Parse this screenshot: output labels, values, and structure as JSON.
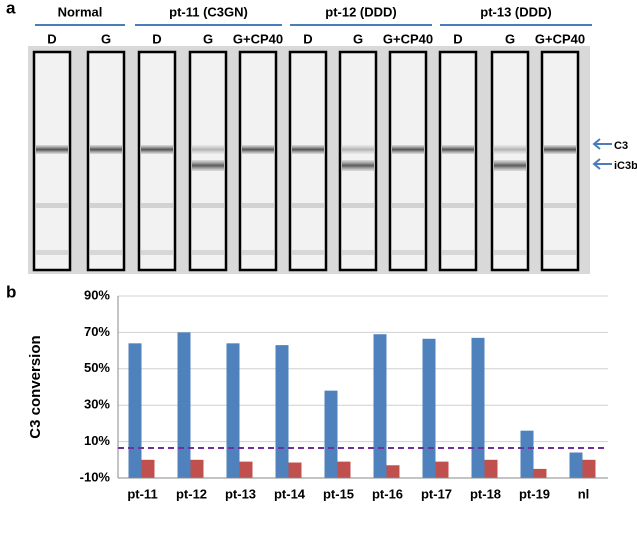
{
  "panel_labels": [
    "a",
    "b"
  ],
  "panel_a": {
    "groups": [
      {
        "label": "Normal"
      },
      {
        "label": "pt-11 (C3GN)"
      },
      {
        "label": "pt-12 (DDD)"
      },
      {
        "label": "pt-13 (DDD)"
      }
    ],
    "lanes": [
      "D",
      "G",
      "D",
      "G",
      "G+CP40",
      "D",
      "G",
      "G+CP40",
      "D",
      "G",
      "G+CP40"
    ],
    "markers": [
      "C3",
      "iC3b"
    ]
  },
  "chart_data": {
    "type": "bar",
    "y_label": "C3 conversion",
    "categories": [
      "pt-11",
      "pt-12",
      "pt-13",
      "pt-14",
      "pt-15",
      "pt-16",
      "pt-17",
      "pt-18",
      "pt-19",
      "nl"
    ],
    "series": [
      {
        "color": "#4f81bd",
        "values": [
          64,
          70,
          64,
          63,
          38,
          69,
          66.5,
          67,
          16,
          4
        ]
      },
      {
        "color": "#c0504d",
        "values": [
          0,
          0,
          -1,
          -1.5,
          -1,
          -3,
          -1,
          0,
          -5,
          0
        ]
      }
    ],
    "ylim": [
      -10,
      90
    ],
    "yticks": [
      {
        "value": -10,
        "label": "-10%"
      },
      {
        "value": 10,
        "label": "10%"
      },
      {
        "value": 30,
        "label": "30%"
      },
      {
        "value": 50,
        "label": "50%"
      },
      {
        "value": 70,
        "label": "70%"
      },
      {
        "value": 90,
        "label": "90%"
      }
    ],
    "grid": true,
    "reference_line": {
      "value": 6.5,
      "color": "#7030a0"
    }
  }
}
